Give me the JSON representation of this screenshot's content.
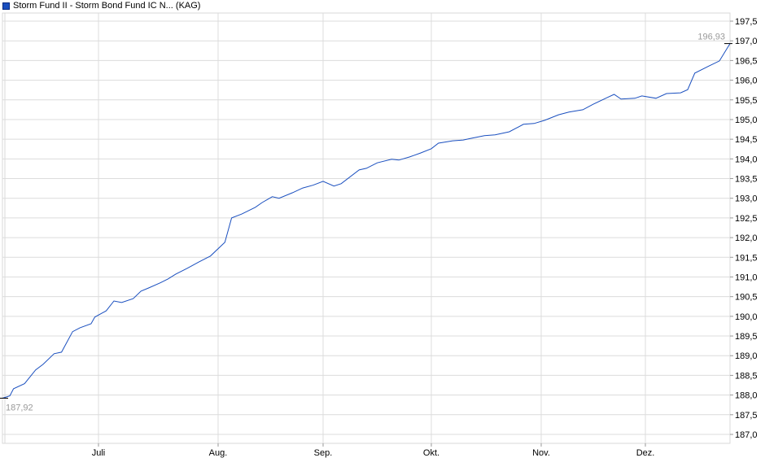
{
  "chart_data": {
    "type": "line",
    "title": "",
    "legend": [
      {
        "name": "Storm Fund II - Storm Bond Fund IC N... (KAG)",
        "color": "#1a4fbf"
      }
    ],
    "legend_placement": "top-left",
    "grid": true,
    "ylim": [
      187.0,
      197.5
    ],
    "y_ticks": [
      "197,5",
      "197,0",
      "196,5",
      "196,0",
      "195,5",
      "195,0",
      "194,5",
      "194,0",
      "193,5",
      "193,0",
      "192,5",
      "192,0",
      "191,5",
      "191,0",
      "190,5",
      "190,0",
      "189,5",
      "189,0",
      "188,5",
      "188,0",
      "187,5",
      "187,0"
    ],
    "x_ticks": [
      {
        "label": "Juli",
        "date": "07-01"
      },
      {
        "label": "Aug.",
        "date": "08-01"
      },
      {
        "label": "Sep.",
        "date": "09-01"
      },
      {
        "label": "Okt.",
        "date": "10-01"
      },
      {
        "label": "Nov.",
        "date": "11-01"
      },
      {
        "label": "Dez.",
        "date": "12-01"
      }
    ],
    "first_label": "187,92",
    "last_label": "196,93",
    "line_color": "#1a4fbf",
    "x": [
      "06-05",
      "06-07",
      "06-08",
      "06-11",
      "06-14",
      "06-16",
      "06-19",
      "06-21",
      "06-24",
      "06-26",
      "06-29",
      "06-30",
      "07-03",
      "07-05",
      "07-07",
      "07-10",
      "07-12",
      "07-14",
      "07-17",
      "07-19",
      "07-21",
      "07-24",
      "07-27",
      "07-30",
      "08-02",
      "08-03",
      "08-05",
      "08-08",
      "08-12",
      "08-14",
      "08-17",
      "08-19",
      "08-23",
      "08-26",
      "08-29",
      "09-01",
      "09-04",
      "09-06",
      "09-11",
      "09-13",
      "09-16",
      "09-20",
      "09-22",
      "09-25",
      "09-28",
      "10-01",
      "10-03",
      "10-07",
      "10-10",
      "10-12",
      "10-16",
      "10-19",
      "10-23",
      "10-27",
      "10-30",
      "11-02",
      "11-06",
      "11-09",
      "11-13",
      "11-16",
      "11-20",
      "11-22",
      "11-24",
      "11-28",
      "11-30",
      "12-04",
      "12-07",
      "12-11",
      "12-13",
      "12-15",
      "12-19",
      "12-22",
      "12-25"
    ],
    "values": [
      187.92,
      187.98,
      188.16,
      188.29,
      188.64,
      188.78,
      189.05,
      189.09,
      189.61,
      189.71,
      189.81,
      189.98,
      190.14,
      190.39,
      190.35,
      190.45,
      190.64,
      190.72,
      190.85,
      190.95,
      191.07,
      191.22,
      191.38,
      191.53,
      191.8,
      191.88,
      192.5,
      192.6,
      192.77,
      192.89,
      193.04,
      193.0,
      193.14,
      193.26,
      193.33,
      193.43,
      193.31,
      193.37,
      193.72,
      193.76,
      193.9,
      193.99,
      193.97,
      194.05,
      194.15,
      194.26,
      194.4,
      194.46,
      194.48,
      194.52,
      194.59,
      194.61,
      194.69,
      194.88,
      194.9,
      194.98,
      195.12,
      195.19,
      195.25,
      195.39,
      195.56,
      195.64,
      195.52,
      195.54,
      195.6,
      195.54,
      195.66,
      195.68,
      195.76,
      196.18,
      196.36,
      196.49,
      196.93
    ]
  }
}
